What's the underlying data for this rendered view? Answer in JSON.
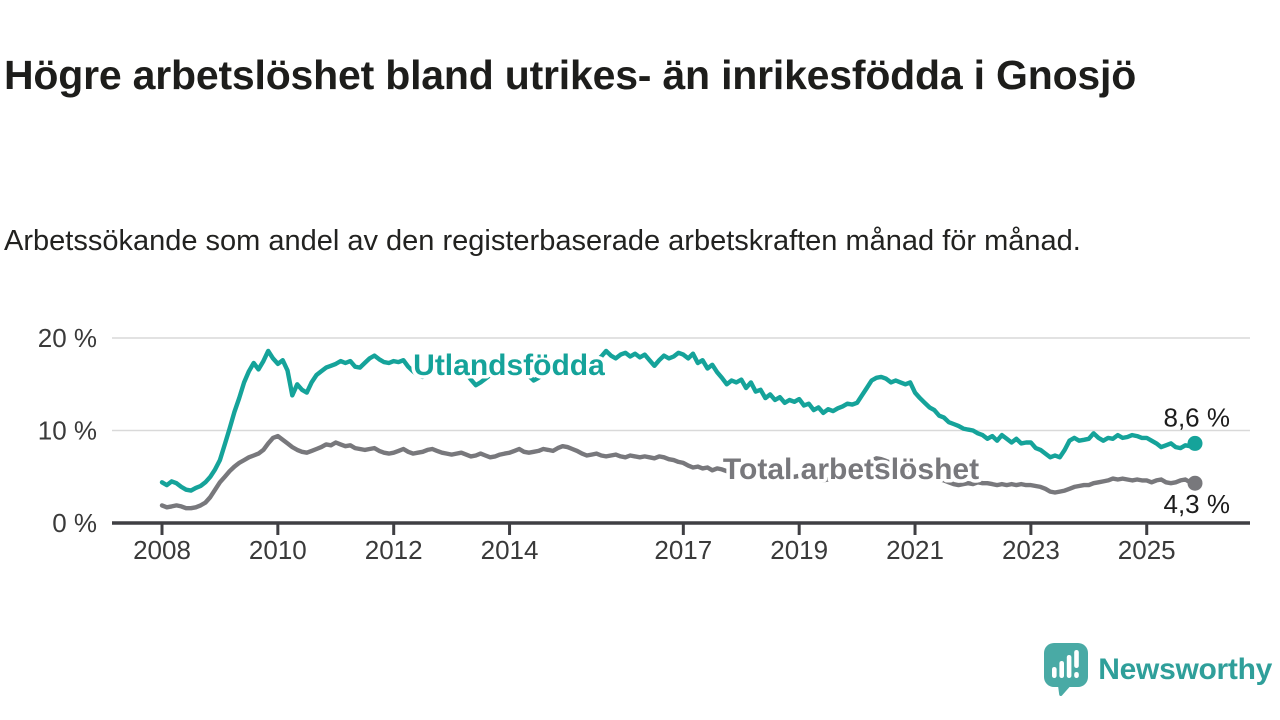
{
  "header": {
    "title": "Högre arbetslöshet bland utrikes- än inrikesfödda i Gnosjö",
    "subtitle": "Arbetssökande som andel av den registerbaserade arbetskraften månad för månad."
  },
  "footer": {
    "brand": "Newsworthy",
    "logo_icon": "bar-chart-speech-bubble-icon"
  },
  "colors": {
    "accent_teal": "#15a39a",
    "series_gray": "#78787c",
    "logo_teal": "#49aaa5",
    "brand_text_teal": "#2f9f9a",
    "text_dark": "#1d1d1b",
    "grid": "#d9d9d9",
    "axis": "#3f3f43",
    "tick_label": "#3a3a3a",
    "value_label": "#1c1c1c"
  },
  "chart_data": {
    "type": "line",
    "title": "Högre arbetslöshet bland utrikes- än inrikesfödda i Gnosjö",
    "x_start": "2008-01",
    "x_end": "2025-11",
    "freq": "monthly",
    "grid": "horizontal-only",
    "x_ticks": [
      2008,
      2010,
      2012,
      2014,
      2017,
      2019,
      2021,
      2023,
      2025
    ],
    "y_ticks": [
      {
        "v": 0,
        "label": "0 %"
      },
      {
        "v": 10,
        "label": "10 %"
      },
      {
        "v": 20,
        "label": "20 %"
      }
    ],
    "ylim": [
      0,
      21
    ],
    "unit": "%",
    "series": [
      {
        "name": "Utlandsfödda",
        "color": "#15a39a",
        "end_value": 8.6,
        "end_label": "8,6 %",
        "values": [
          4.4,
          4.1,
          4.5,
          4.3,
          3.9,
          3.6,
          3.5,
          3.8,
          4.0,
          4.4,
          5.0,
          5.8,
          6.8,
          8.5,
          10.2,
          12.0,
          13.5,
          15.2,
          16.4,
          17.3,
          16.6,
          17.5,
          18.6,
          17.8,
          17.2,
          17.6,
          16.5,
          13.8,
          15.0,
          14.4,
          14.1,
          15.2,
          16.0,
          16.4,
          16.8,
          17.0,
          17.2,
          17.5,
          17.3,
          17.5,
          16.9,
          16.8,
          17.3,
          17.8,
          18.1,
          17.7,
          17.4,
          17.3,
          17.5,
          17.4,
          17.6,
          16.9,
          16.4,
          16.0,
          15.8,
          16.2,
          16.6,
          16.9,
          16.7,
          16.5,
          16.6,
          16.9,
          16.6,
          16.2,
          15.5,
          14.9,
          15.2,
          15.6,
          16.0,
          16.3,
          16.5,
          16.4,
          16.6,
          16.9,
          17.1,
          16.6,
          15.9,
          15.4,
          15.7,
          16.1,
          16.6,
          16.9,
          17.2,
          17.1,
          17.3,
          17.6,
          17.4,
          17.0,
          16.7,
          16.9,
          17.5,
          18.0,
          18.6,
          18.1,
          17.8,
          18.2,
          18.4,
          18.0,
          18.3,
          17.9,
          18.2,
          17.6,
          17.0,
          17.6,
          18.1,
          17.8,
          18.0,
          18.4,
          18.2,
          17.8,
          18.3,
          17.3,
          17.6,
          16.7,
          17.1,
          16.3,
          15.7,
          15.0,
          15.4,
          15.2,
          15.5,
          14.6,
          15.2,
          14.2,
          14.4,
          13.5,
          13.9,
          13.3,
          13.6,
          13.0,
          13.3,
          13.1,
          13.4,
          12.7,
          12.9,
          12.2,
          12.5,
          11.9,
          12.3,
          12.1,
          12.4,
          12.6,
          12.9,
          12.8,
          13.0,
          13.8,
          14.6,
          15.4,
          15.7,
          15.8,
          15.6,
          15.2,
          15.4,
          15.2,
          15.0,
          15.2,
          14.1,
          13.5,
          13.0,
          12.5,
          12.2,
          11.6,
          11.4,
          10.9,
          10.7,
          10.5,
          10.2,
          10.1,
          10.0,
          9.7,
          9.5,
          9.1,
          9.4,
          8.9,
          9.5,
          9.1,
          8.7,
          9.1,
          8.6,
          8.7,
          8.7,
          8.1,
          7.9,
          7.5,
          7.1,
          7.3,
          7.1,
          7.9,
          8.9,
          9.2,
          8.9,
          9.0,
          9.1,
          9.7,
          9.2,
          8.9,
          9.2,
          9.1,
          9.5,
          9.2,
          9.3,
          9.5,
          9.4,
          9.2,
          9.2,
          8.9,
          8.6,
          8.2,
          8.4,
          8.6,
          8.2,
          8.1,
          8.4,
          8.3,
          8.6
        ]
      },
      {
        "name": "Total arbetslöshet",
        "color": "#78787c",
        "end_value": 4.3,
        "end_label": "4,3 %",
        "values": [
          1.9,
          1.7,
          1.8,
          1.9,
          1.8,
          1.6,
          1.6,
          1.7,
          1.9,
          2.2,
          2.8,
          3.6,
          4.4,
          5.0,
          5.6,
          6.1,
          6.5,
          6.8,
          7.1,
          7.3,
          7.5,
          7.9,
          8.6,
          9.2,
          9.4,
          9.0,
          8.6,
          8.2,
          7.9,
          7.7,
          7.6,
          7.8,
          8.0,
          8.2,
          8.5,
          8.4,
          8.7,
          8.5,
          8.3,
          8.4,
          8.1,
          8.0,
          7.9,
          8.0,
          8.1,
          7.8,
          7.6,
          7.5,
          7.6,
          7.8,
          8.0,
          7.7,
          7.5,
          7.6,
          7.7,
          7.9,
          8.0,
          7.8,
          7.6,
          7.5,
          7.4,
          7.5,
          7.6,
          7.4,
          7.2,
          7.3,
          7.5,
          7.3,
          7.1,
          7.2,
          7.4,
          7.5,
          7.6,
          7.8,
          8.0,
          7.7,
          7.6,
          7.7,
          7.8,
          8.0,
          7.9,
          7.8,
          8.1,
          8.3,
          8.2,
          8.0,
          7.8,
          7.5,
          7.3,
          7.4,
          7.5,
          7.3,
          7.2,
          7.3,
          7.4,
          7.2,
          7.1,
          7.3,
          7.2,
          7.1,
          7.2,
          7.1,
          7.0,
          7.2,
          7.1,
          6.9,
          6.8,
          6.6,
          6.5,
          6.2,
          6.0,
          6.1,
          5.9,
          6.0,
          5.7,
          5.9,
          5.8,
          5.6,
          5.5,
          5.4,
          5.5,
          5.3,
          5.2,
          5.0,
          5.1,
          4.9,
          5.0,
          4.8,
          4.9,
          5.0,
          5.1,
          5.0,
          5.1,
          4.9,
          4.8,
          4.7,
          4.8,
          4.6,
          4.7,
          4.8,
          4.9,
          5.0,
          5.2,
          5.3,
          5.4,
          5.7,
          6.2,
          6.7,
          7.0,
          6.9,
          6.7,
          6.5,
          6.3,
          6.1,
          5.9,
          5.7,
          5.6,
          5.4,
          5.2,
          5.0,
          4.9,
          4.7,
          4.6,
          4.4,
          4.2,
          4.1,
          4.2,
          4.3,
          4.2,
          4.4,
          4.3,
          4.3,
          4.2,
          4.1,
          4.2,
          4.1,
          4.2,
          4.1,
          4.2,
          4.1,
          4.1,
          4.0,
          3.9,
          3.7,
          3.4,
          3.3,
          3.4,
          3.5,
          3.7,
          3.9,
          4.0,
          4.1,
          4.1,
          4.3,
          4.4,
          4.5,
          4.6,
          4.8,
          4.7,
          4.8,
          4.7,
          4.6,
          4.7,
          4.6,
          4.6,
          4.4,
          4.6,
          4.7,
          4.4,
          4.3,
          4.4,
          4.6,
          4.7,
          4.4,
          4.3
        ]
      }
    ],
    "legend_position": "inline-labels-on-lines"
  }
}
